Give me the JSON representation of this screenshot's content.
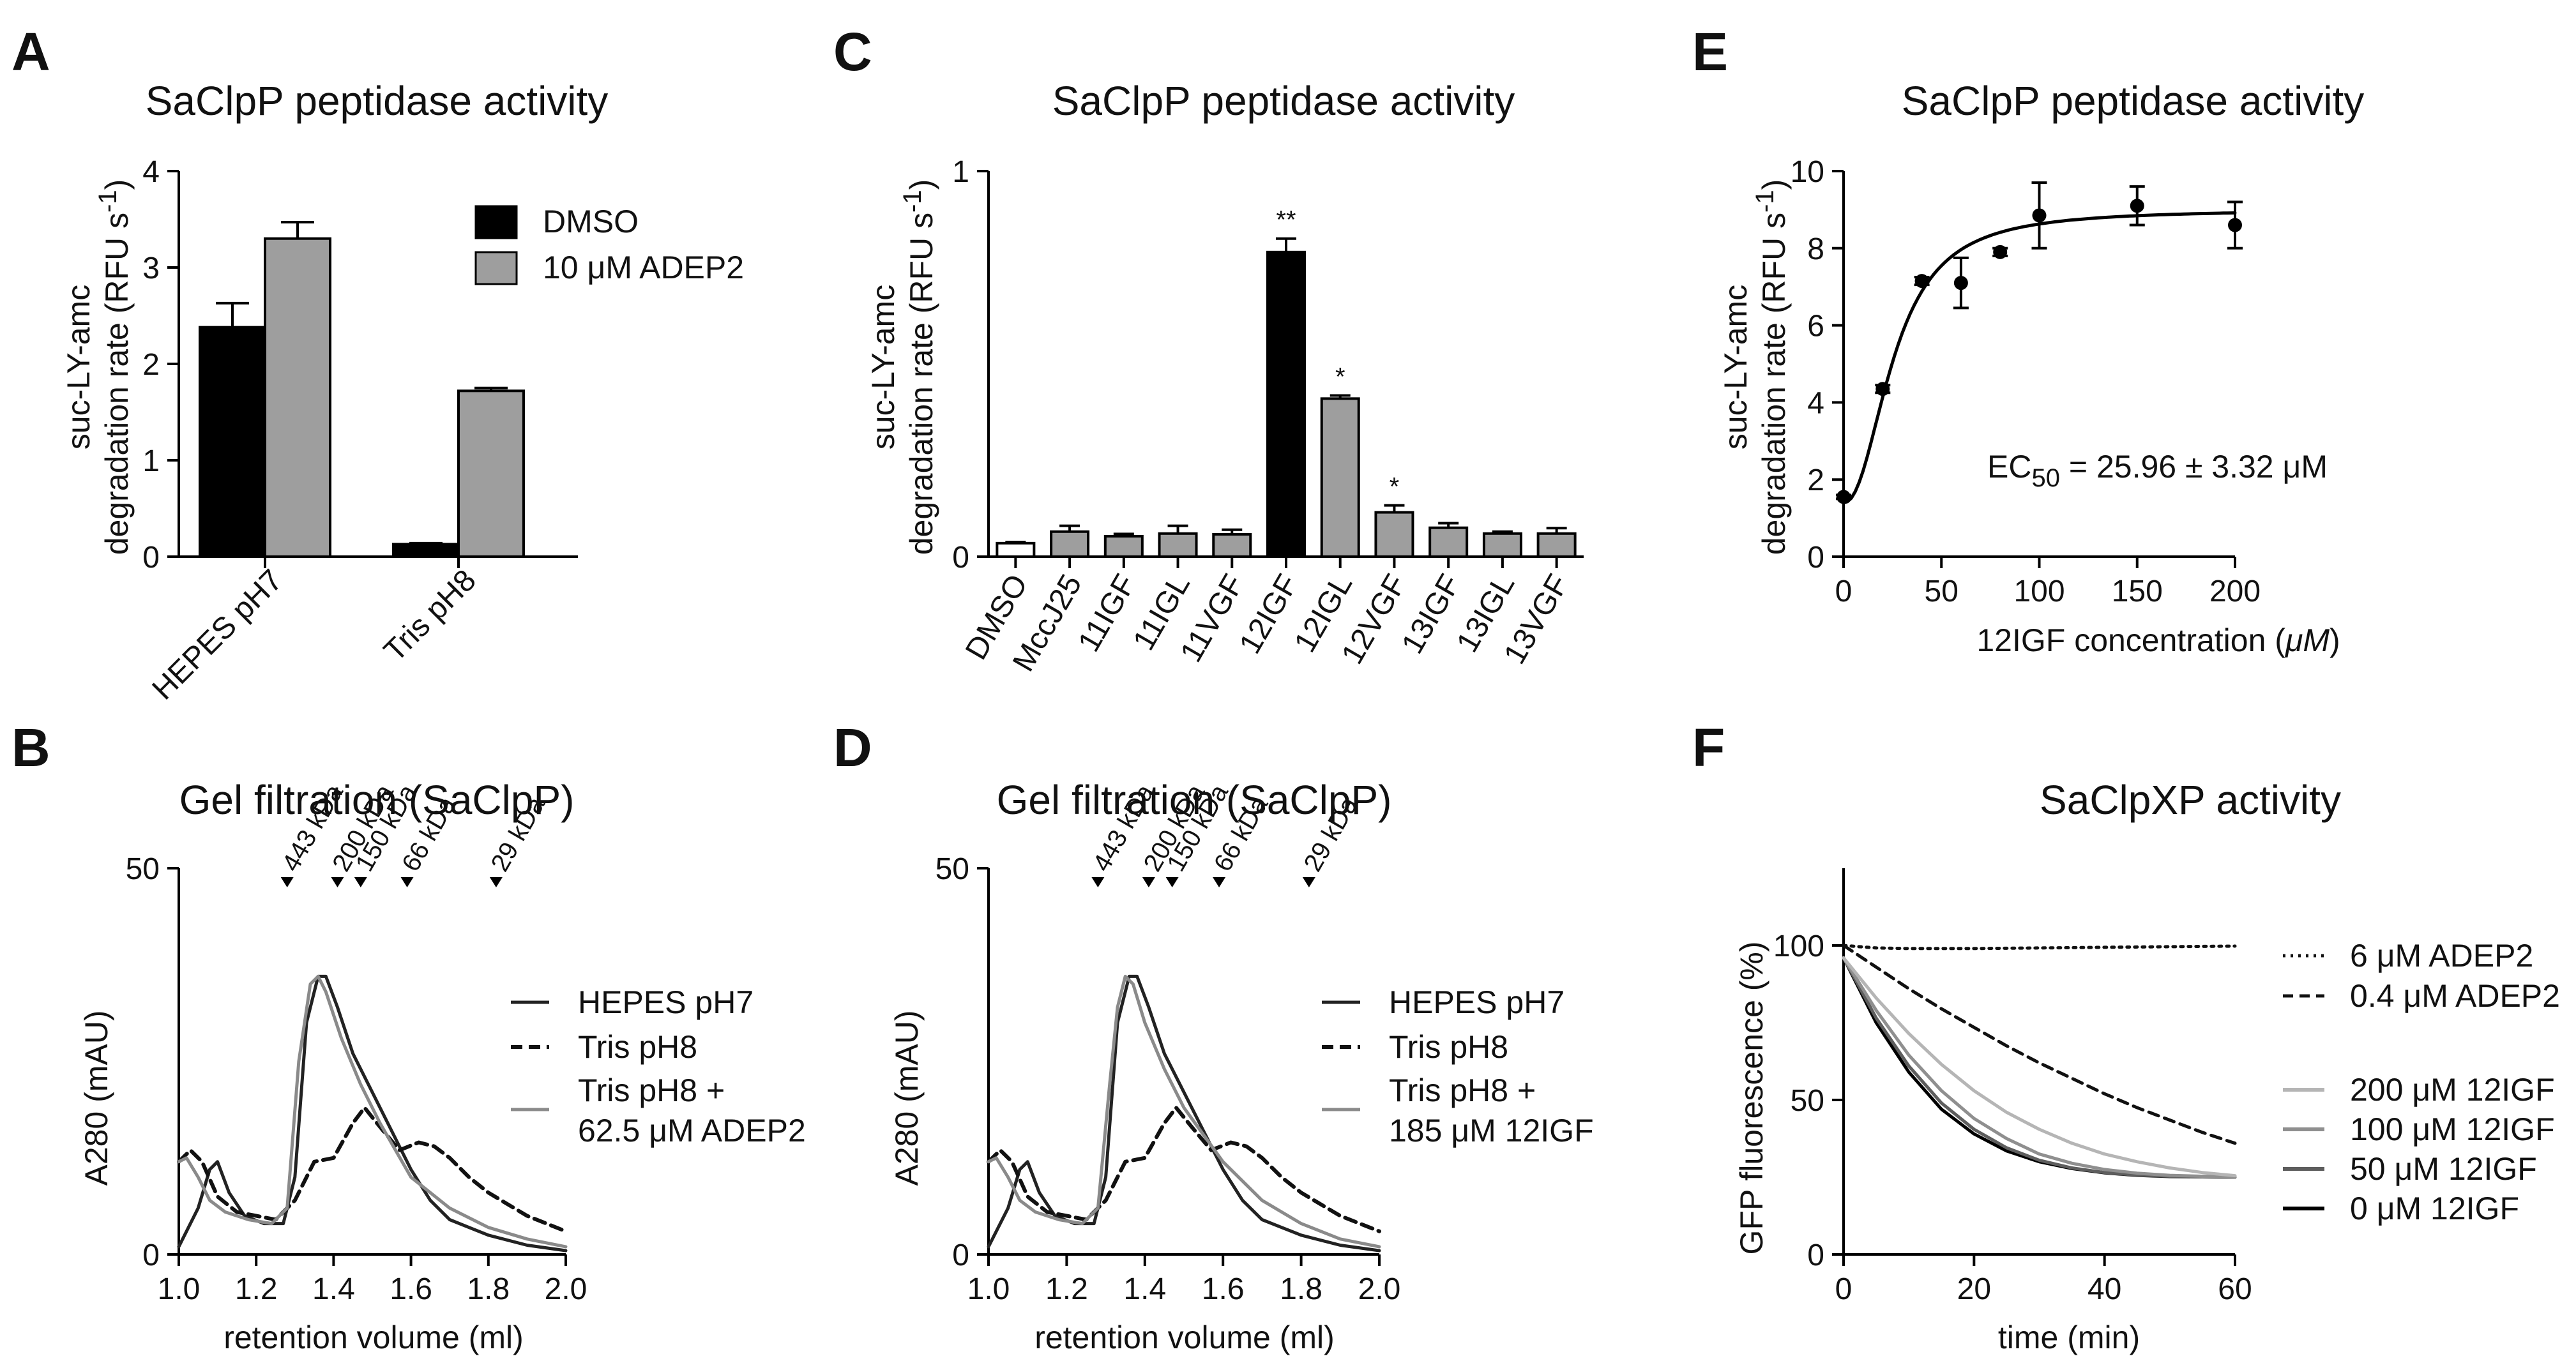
{
  "chart_data": [
    {
      "panel": "A",
      "type": "bar",
      "title": "SaClpP peptidase activity",
      "ylabel_line1": "suc-LY-amc",
      "ylabel_line2_pre": "degradation rate (RFU s",
      "ylabel_line2_sup": "-1",
      "ylabel_line2_post": ")",
      "ylim": [
        0,
        4
      ],
      "yticks": [
        0,
        1,
        2,
        3,
        4
      ],
      "categories": [
        "HEPES pH7",
        "Tris pH8"
      ],
      "series": [
        {
          "name": "DMSO",
          "color": "#000000",
          "values": [
            2.38,
            0.13
          ],
          "errors": [
            0.25,
            0.01
          ]
        },
        {
          "name": "10 μM ADEP2",
          "color": "#9e9e9e",
          "values": [
            3.3,
            1.72
          ],
          "errors": [
            0.17,
            0.03
          ]
        }
      ]
    },
    {
      "panel": "B",
      "type": "line",
      "title": "Gel filtration (SaClpP)",
      "xlabel": "retention volume (ml)",
      "ylabel": "A280 (mAU)",
      "xlim": [
        1.0,
        2.0
      ],
      "ylim": [
        0,
        50
      ],
      "xticks": [
        1.0,
        1.2,
        1.4,
        1.6,
        1.8,
        2.0
      ],
      "yticks": [
        0,
        50
      ],
      "markers": [
        {
          "label": "443 kDa",
          "x": 1.28
        },
        {
          "label": "200 kDa",
          "x": 1.41
        },
        {
          "label": "150 kDa",
          "x": 1.47
        },
        {
          "label": "66 kDa",
          "x": 1.59
        },
        {
          "label": "29 kDa",
          "x": 1.82
        }
      ],
      "legend": [
        "HEPES pH7",
        "Tris pH8",
        "Tris pH8 +",
        "62.5  μM ADEP2"
      ],
      "series": [
        {
          "name": "HEPES pH7",
          "style": "solid",
          "color": "#222222",
          "x": [
            1.0,
            1.05,
            1.08,
            1.1,
            1.13,
            1.17,
            1.22,
            1.27,
            1.3,
            1.33,
            1.36,
            1.38,
            1.41,
            1.45,
            1.5,
            1.55,
            1.6,
            1.65,
            1.7,
            1.75,
            1.8,
            1.9,
            2.0
          ],
          "y": [
            1,
            6,
            11,
            12,
            8,
            5,
            4,
            4,
            10,
            30,
            36,
            36,
            32,
            26,
            21,
            16,
            11,
            7,
            4.5,
            3.5,
            2.5,
            1.2,
            0.5
          ]
        },
        {
          "name": "Tris pH8",
          "style": "dashed",
          "color": "#111111",
          "x": [
            1.0,
            1.03,
            1.06,
            1.1,
            1.15,
            1.2,
            1.25,
            1.3,
            1.35,
            1.4,
            1.45,
            1.48,
            1.52,
            1.57,
            1.62,
            1.66,
            1.7,
            1.75,
            1.8,
            1.9,
            2.0
          ],
          "y": [
            12,
            13.5,
            12,
            7.5,
            5.5,
            5,
            4.5,
            7,
            12,
            12.5,
            17,
            19,
            16.5,
            13.5,
            14.5,
            14,
            12.5,
            10,
            8,
            5,
            3
          ]
        },
        {
          "name": "Tris pH8 + 62.5 μM ADEP2",
          "style": "solid",
          "color": "#8a8a8a",
          "x": [
            1.0,
            1.02,
            1.05,
            1.08,
            1.12,
            1.18,
            1.24,
            1.28,
            1.31,
            1.34,
            1.36,
            1.38,
            1.42,
            1.47,
            1.52,
            1.6,
            1.7,
            1.8,
            1.9,
            2.0
          ],
          "y": [
            12,
            12.5,
            10,
            7,
            5.5,
            4.5,
            4,
            6,
            25,
            35,
            36,
            34,
            28,
            22,
            17,
            10,
            6,
            3.5,
            2,
            1
          ]
        }
      ]
    },
    {
      "panel": "C",
      "type": "bar",
      "title": "SaClpP peptidase activity",
      "ylabel_line1": "suc-LY-amc",
      "ylabel_line2_pre": "degradation rate (RFU s",
      "ylabel_line2_sup": "-1",
      "ylabel_line2_post": ")",
      "ylim": [
        0,
        1
      ],
      "yticks": [
        0,
        1
      ],
      "categories": [
        "DMSO",
        "MccJ25",
        "11IGF",
        "11IGL",
        "11VGF",
        "12IGF",
        "12IGL",
        "12VGF",
        "13IGF",
        "13IGL",
        "13VGF"
      ],
      "values": [
        0.035,
        0.065,
        0.053,
        0.06,
        0.058,
        0.79,
        0.41,
        0.115,
        0.075,
        0.06,
        0.06
      ],
      "errors": [
        0.003,
        0.015,
        0.006,
        0.02,
        0.012,
        0.035,
        0.008,
        0.018,
        0.012,
        0.005,
        0.014
      ],
      "colors": [
        "#ffffff",
        "#9e9e9e",
        "#9e9e9e",
        "#9e9e9e",
        "#9e9e9e",
        "#000000",
        "#9e9e9e",
        "#9e9e9e",
        "#9e9e9e",
        "#9e9e9e",
        "#9e9e9e"
      ],
      "significance": [
        "",
        "",
        "",
        "",
        "",
        "**",
        "*",
        "*",
        "",
        "",
        ""
      ]
    },
    {
      "panel": "D",
      "type": "line",
      "title": "Gel filtration (SaClpP)",
      "xlabel": "retention volume (ml)",
      "ylabel": "A280 (mAU)",
      "xlim": [
        1.0,
        2.0
      ],
      "ylim": [
        0,
        50
      ],
      "xticks": [
        1.0,
        1.2,
        1.4,
        1.6,
        1.8,
        2.0
      ],
      "yticks": [
        0,
        50
      ],
      "markers": [
        {
          "label": "443 kDa",
          "x": 1.28
        },
        {
          "label": "200 kDa",
          "x": 1.41
        },
        {
          "label": "150 kDa",
          "x": 1.47
        },
        {
          "label": "66 kDa",
          "x": 1.59
        },
        {
          "label": "29 kDa",
          "x": 1.82
        }
      ],
      "legend": [
        "HEPES pH7",
        "Tris pH8",
        "Tris pH8 +",
        "185 μM 12IGF"
      ],
      "series": [
        {
          "name": "HEPES pH7",
          "style": "solid",
          "color": "#222222",
          "x": [
            1.0,
            1.05,
            1.08,
            1.1,
            1.13,
            1.17,
            1.22,
            1.27,
            1.3,
            1.33,
            1.36,
            1.38,
            1.41,
            1.45,
            1.5,
            1.55,
            1.6,
            1.65,
            1.7,
            1.75,
            1.8,
            1.9,
            2.0
          ],
          "y": [
            1,
            6,
            11,
            12,
            8,
            5,
            4,
            4,
            10,
            30,
            36,
            36,
            32,
            26,
            21,
            16,
            11,
            7,
            4.5,
            3.5,
            2.5,
            1.2,
            0.5
          ]
        },
        {
          "name": "Tris pH8",
          "style": "dashed",
          "color": "#111111",
          "x": [
            1.0,
            1.03,
            1.06,
            1.1,
            1.15,
            1.2,
            1.25,
            1.3,
            1.35,
            1.4,
            1.45,
            1.48,
            1.52,
            1.57,
            1.62,
            1.66,
            1.7,
            1.75,
            1.8,
            1.9,
            2.0
          ],
          "y": [
            12,
            13.5,
            12,
            7.5,
            5.5,
            5,
            4.5,
            7,
            12,
            12.5,
            17,
            19,
            16.5,
            13.5,
            14.5,
            14,
            12.5,
            10,
            8,
            5,
            3
          ]
        },
        {
          "name": "Tris pH8 + 185 μM 12IGF",
          "style": "solid",
          "color": "#8a8a8a",
          "x": [
            1.0,
            1.02,
            1.05,
            1.08,
            1.12,
            1.18,
            1.24,
            1.28,
            1.31,
            1.33,
            1.35,
            1.37,
            1.4,
            1.45,
            1.5,
            1.6,
            1.7,
            1.8,
            1.9,
            2.0
          ],
          "y": [
            12,
            12.5,
            10,
            7,
            5.5,
            4.5,
            4,
            6,
            22,
            32,
            36,
            35,
            30,
            24,
            19,
            12,
            7,
            4,
            2,
            1
          ]
        }
      ]
    },
    {
      "panel": "E",
      "type": "scatter",
      "title": "SaClpP peptidase activity",
      "xlabel_pre": "12IGF concentration (",
      "xlabel_unit": "μM",
      "xlabel_post": ")",
      "ylabel_line1": "suc-LY-amc",
      "ylabel_line2_pre": "degradation rate (RFU s",
      "ylabel_line2_sup": "-1",
      "ylabel_line2_post": ")",
      "xlim": [
        0,
        200
      ],
      "ylim": [
        0,
        10
      ],
      "xticks": [
        0,
        50,
        100,
        150,
        200
      ],
      "yticks": [
        0,
        2,
        4,
        6,
        8,
        10
      ],
      "points": {
        "x": [
          0,
          20,
          40,
          60,
          80,
          100,
          150,
          200
        ],
        "y": [
          1.55,
          4.35,
          7.15,
          7.1,
          7.9,
          8.85,
          9.1,
          8.6
        ],
        "errors": [
          0.05,
          0.1,
          0.1,
          0.65,
          0.1,
          0.85,
          0.5,
          0.6
        ]
      },
      "fit": {
        "ec50": 25.96,
        "bottom": 1.4,
        "top": 9.0,
        "hill": 2.2
      },
      "annotation_pre": "EC",
      "annotation_sub": "50",
      "annotation_post": " = 25.96 ± 3.32 μM"
    },
    {
      "panel": "F",
      "type": "line",
      "title": "SaClpXP activity",
      "xlabel": "time (min)",
      "ylabel": "GFP fluorescence (%)",
      "xlim": [
        0,
        60
      ],
      "ylim": [
        0,
        125
      ],
      "xticks": [
        0,
        20,
        40,
        60
      ],
      "yticks": [
        0,
        50,
        100
      ],
      "series": [
        {
          "name": "6 μM ADEP2",
          "style": "dotted",
          "color": "#111111",
          "x": [
            0,
            5,
            10,
            20,
            30,
            40,
            50,
            60
          ],
          "y": [
            100,
            99.2,
            99,
            99,
            99.2,
            99.4,
            99.6,
            99.8
          ]
        },
        {
          "name": "0.4 μM ADEP2",
          "style": "dashed",
          "color": "#111111",
          "x": [
            0,
            5,
            10,
            15,
            20,
            25,
            30,
            35,
            40,
            45,
            50,
            55,
            60
          ],
          "y": [
            100,
            93,
            86,
            79.5,
            73.5,
            67.5,
            62,
            57,
            52,
            47.5,
            43.5,
            39.5,
            36
          ]
        },
        {
          "name": "200 μM 12IGF",
          "style": "solid",
          "color": "#b5b5b5",
          "x": [
            0,
            5,
            10,
            15,
            20,
            25,
            30,
            35,
            40,
            45,
            50,
            55,
            60
          ],
          "y": [
            96,
            83,
            71.5,
            61.5,
            53,
            46,
            40.5,
            36,
            32.5,
            30,
            28,
            26.5,
            25.5
          ]
        },
        {
          "name": "100 μM 12IGF",
          "style": "solid",
          "color": "#8f8f8f",
          "x": [
            0,
            5,
            10,
            15,
            20,
            25,
            30,
            35,
            40,
            45,
            50,
            55,
            60
          ],
          "y": [
            96,
            79,
            64.5,
            53,
            44,
            37.5,
            32.5,
            29.5,
            27.5,
            26.3,
            25.6,
            25.3,
            25.1
          ]
        },
        {
          "name": "50 μM 12IGF",
          "style": "solid",
          "color": "#5e5e5e",
          "x": [
            0,
            5,
            10,
            15,
            20,
            25,
            30,
            35,
            40,
            45,
            50,
            55,
            60
          ],
          "y": [
            96,
            76.5,
            61,
            49,
            40.5,
            34.5,
            30.5,
            28,
            26.5,
            25.7,
            25.3,
            25.1,
            25
          ]
        },
        {
          "name": "0 μM 12IGF",
          "style": "solid",
          "color": "#000000",
          "x": [
            0,
            5,
            10,
            15,
            20,
            25,
            30,
            35,
            40,
            45,
            50,
            55,
            60
          ],
          "y": [
            96,
            75,
            59,
            47,
            39,
            33.5,
            30,
            27.8,
            26.4,
            25.6,
            25.2,
            25.1,
            25
          ]
        }
      ]
    }
  ],
  "panel_labels": [
    "A",
    "B",
    "C",
    "D",
    "E",
    "F"
  ],
  "legends": {
    "A": [
      "DMSO",
      "10 μM ADEP2"
    ],
    "F": [
      "6 μM ADEP2",
      "0.4 μM ADEP2",
      "200 μM 12IGF",
      "100 μM 12IGF",
      "50 μM 12IGF",
      "0 μM 12IGF"
    ]
  }
}
